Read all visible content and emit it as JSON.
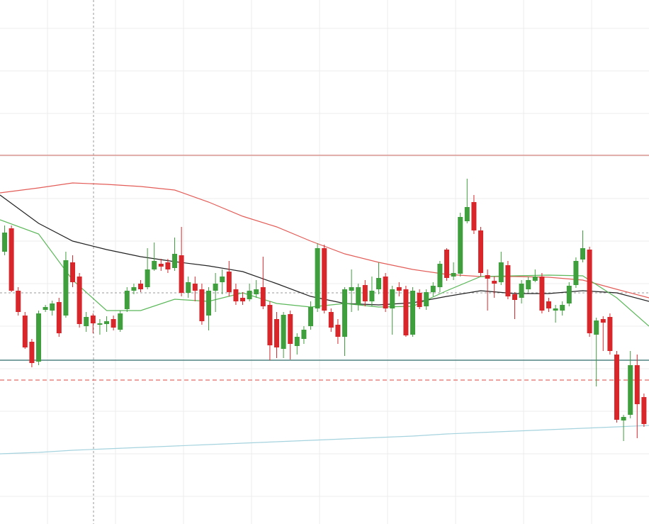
{
  "chart_data": {
    "type": "candlestick",
    "xlim": [
      -0.68,
      94.74
    ],
    "ylim": [
      0,
      739
    ],
    "xticks": [
      6.3,
      16.3,
      26.3,
      36.3,
      46.3,
      56.3,
      66.3,
      76.3,
      86.3
    ],
    "yticks": [
      699,
      639,
      579,
      519,
      459,
      399,
      339,
      279,
      219,
      159,
      99,
      39
    ],
    "grid": true,
    "up_color": "#3f9f3c",
    "down_color": "#d8262b",
    "open": [
      384,
      417,
      329,
      294,
      257,
      229,
      302,
      301,
      313,
      294,
      369,
      349,
      279,
      294,
      281,
      282,
      289,
      274,
      303,
      329,
      339,
      334,
      359,
      367,
      369,
      361,
      379,
      326,
      339,
      331,
      294,
      329,
      341,
      356,
      331,
      319,
      317,
      324,
      334,
      309,
      289,
      247,
      296,
      251,
      261,
      279,
      304,
      389,
      299,
      281,
      264,
      329,
      309,
      337,
      314,
      331,
      349,
      304,
      334,
      331,
      267,
      326,
      307,
      327,
      334,
      387,
      349,
      353,
      427,
      454,
      414,
      351,
      343,
      341,
      365,
      324,
      319,
      331,
      343,
      349,
      314,
      301,
      301,
      311,
      337,
      373,
      387,
      267,
      289,
      292,
      239,
      146,
      154,
      224,
      179
    ],
    "high": [
      421,
      421,
      334,
      299,
      261,
      301,
      309,
      315,
      319,
      384,
      379,
      354,
      299,
      297,
      289,
      293,
      294,
      301,
      334,
      339,
      344,
      389,
      397,
      374,
      374,
      404,
      419,
      349,
      349,
      339,
      334,
      354,
      359,
      371,
      339,
      327,
      339,
      344,
      377,
      314,
      299,
      299,
      301,
      269,
      279,
      314,
      396,
      394,
      304,
      289,
      334,
      359,
      339,
      344,
      349,
      369,
      354,
      336,
      341,
      336,
      334,
      331,
      331,
      341,
      371,
      389,
      369,
      439,
      487,
      464,
      419,
      359,
      349,
      384,
      371,
      327,
      344,
      349,
      359,
      354,
      319,
      309,
      314,
      341,
      376,
      414,
      391,
      291,
      293,
      297,
      244,
      154,
      244,
      239,
      184
    ],
    "low": [
      379,
      327,
      294,
      247,
      221,
      224,
      299,
      294,
      264,
      291,
      334,
      277,
      271,
      269,
      267,
      271,
      273,
      271,
      299,
      324,
      327,
      331,
      357,
      357,
      354,
      357,
      321,
      319,
      314,
      281,
      273,
      299,
      324,
      321,
      309,
      309,
      314,
      319,
      303,
      231,
      234,
      234,
      232,
      239,
      254,
      274,
      299,
      297,
      271,
      254,
      237,
      299,
      301,
      307,
      307,
      324,
      299,
      267,
      321,
      264,
      264,
      303,
      302,
      321,
      327,
      343,
      344,
      349,
      424,
      409,
      349,
      301,
      319,
      337,
      317,
      289,
      311,
      327,
      341,
      297,
      299,
      284,
      294,
      307,
      333,
      369,
      264,
      194,
      244,
      239,
      143,
      117,
      149,
      121,
      137
    ],
    "close": [
      411,
      329,
      299,
      249,
      227,
      297,
      306,
      311,
      269,
      372,
      341,
      282,
      292,
      283,
      283,
      286,
      277,
      297,
      329,
      334,
      331,
      359,
      371,
      363,
      359,
      381,
      326,
      341,
      329,
      286,
      329,
      339,
      349,
      327,
      314,
      314,
      329,
      331,
      307,
      252,
      249,
      295,
      254,
      264,
      274,
      306,
      389,
      301,
      277,
      264,
      331,
      334,
      334,
      314,
      329,
      347,
      304,
      331,
      329,
      266,
      329,
      306,
      327,
      336,
      367,
      347,
      354,
      433,
      447,
      414,
      354,
      346,
      339,
      369,
      321,
      316,
      339,
      344,
      349,
      301,
      304,
      304,
      309,
      336,
      371,
      389,
      269,
      287,
      284,
      244,
      147,
      151,
      224,
      169,
      141
    ],
    "overlays": [
      {
        "color": "#e35d58",
        "x": [
          -0.68,
          5,
          10,
          15,
          20,
          25,
          30,
          35,
          40,
          45,
          50,
          55,
          60,
          65,
          70,
          75,
          80,
          85,
          90,
          94.74
        ],
        "values": [
          467,
          474,
          481,
          479,
          476,
          471,
          454,
          434,
          419,
          399,
          381,
          369,
          359,
          352,
          349,
          349,
          348,
          344,
          331,
          319
        ]
      },
      {
        "color": "#222222",
        "x": [
          -0.68,
          5,
          10,
          15,
          20,
          25,
          30,
          35,
          40,
          45,
          50,
          55,
          60,
          65,
          70,
          75,
          80,
          85,
          90,
          94.74
        ],
        "values": [
          464,
          424,
          399,
          387,
          377,
          370,
          364,
          356,
          339,
          321,
          311,
          309,
          312,
          321,
          329,
          325,
          325,
          329,
          326,
          314
        ]
      },
      {
        "color": "#5cb85a",
        "x": [
          -0.68,
          5,
          10,
          15,
          20,
          25,
          30,
          35,
          40,
          45,
          50,
          55,
          60,
          65,
          70,
          75,
          80,
          85,
          90,
          94.74
        ],
        "values": [
          429,
          409,
          344,
          301,
          301,
          317,
          314,
          326,
          311,
          306,
          311,
          306,
          307,
          329,
          349,
          350,
          351,
          350,
          319,
          279
        ]
      },
      {
        "color": "#a5d3de",
        "x": [
          -0.68,
          5,
          10,
          15,
          20,
          25,
          30,
          35,
          40,
          45,
          50,
          55,
          60,
          65,
          70,
          75,
          80,
          85,
          90,
          94.74
        ],
        "values": [
          99,
          101,
          104,
          106,
          108,
          110,
          112,
          114,
          116,
          118,
          120,
          122,
          124,
          127,
          129,
          131,
          133,
          135,
          137,
          139
        ]
      }
    ],
    "levels": [
      {
        "value": 520,
        "color": "#d7857e",
        "dashed": false
      },
      {
        "value": 231,
        "color": "#2f6b6b",
        "dashed": false
      },
      {
        "value": 203,
        "color": "#e06c68",
        "dashed": true
      }
    ],
    "crosshair": {
      "x": 13.07,
      "y": 326,
      "color": "#9a9a9a"
    }
  }
}
